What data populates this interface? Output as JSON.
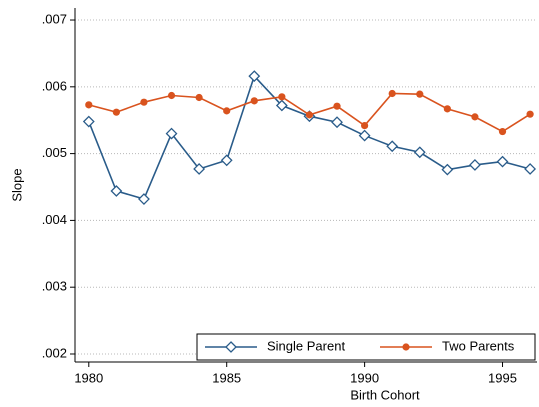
{
  "chart_data": {
    "type": "line",
    "x": [
      1980,
      1981,
      1982,
      1983,
      1984,
      1985,
      1986,
      1987,
      1988,
      1989,
      1990,
      1991,
      1992,
      1993,
      1994,
      1995,
      1996
    ],
    "series": [
      {
        "name": "Single Parent",
        "color": "#2a5c8a",
        "marker": "diamond",
        "values": [
          0.00548,
          0.00444,
          0.00432,
          0.0053,
          0.00477,
          0.0049,
          0.00616,
          0.00572,
          0.00556,
          0.00547,
          0.00527,
          0.00511,
          0.00502,
          0.00476,
          0.00483,
          0.00488,
          0.00477
        ]
      },
      {
        "name": "Two Parents",
        "color": "#d9531e",
        "marker": "circle",
        "values": [
          0.00573,
          0.00562,
          0.00577,
          0.00587,
          0.00584,
          0.00564,
          0.00579,
          0.00585,
          0.00558,
          0.00571,
          0.00542,
          0.0059,
          0.00589,
          0.00567,
          0.00555,
          0.00533,
          0.00559
        ]
      }
    ],
    "xlabel": "Birth Cohort",
    "ylabel": "Slope",
    "xlim": [
      1979.5,
      1996.25
    ],
    "xticks": [
      1980,
      1985,
      1990,
      1995
    ],
    "ylim": [
      0.00188,
      0.00718
    ],
    "yticks": [
      {
        "value": 0.002,
        "label": ".002"
      },
      {
        "value": 0.003,
        "label": ".003"
      },
      {
        "value": 0.004,
        "label": ".004"
      },
      {
        "value": 0.005,
        "label": ".005"
      },
      {
        "value": 0.006,
        "label": ".006"
      },
      {
        "value": 0.007,
        "label": ".007"
      }
    ],
    "grid": true,
    "legend": "lower right"
  }
}
